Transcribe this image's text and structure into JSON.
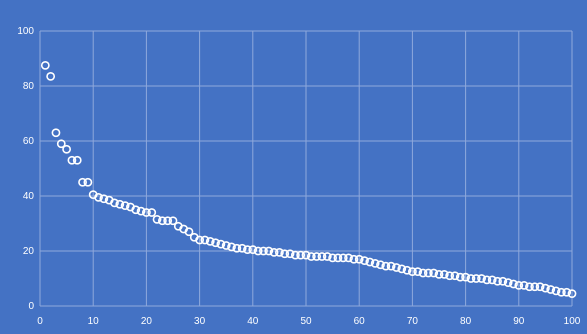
{
  "chart_data": {
    "type": "scatter",
    "title": "",
    "xlabel": "",
    "ylabel": "",
    "xlim": [
      0,
      100
    ],
    "ylim": [
      0,
      100
    ],
    "x_ticks": [
      "0",
      "10",
      "20",
      "30",
      "40",
      "50",
      "60",
      "70",
      "80",
      "90",
      "100"
    ],
    "y_ticks": [
      "0",
      "20",
      "40",
      "60",
      "80",
      "100"
    ],
    "grid": true,
    "legend": "none",
    "colors": {
      "background": "#4472c4",
      "grid": "#8fa9dc",
      "tick_text": "#ffffff",
      "marker_stroke": "#ffffff"
    },
    "series": [
      {
        "values": [
          [
            1,
            87.5
          ],
          [
            2,
            83.5
          ],
          [
            3,
            63
          ],
          [
            4,
            59
          ],
          [
            5,
            57
          ],
          [
            6,
            53
          ],
          [
            7,
            53
          ],
          [
            8,
            45
          ],
          [
            9,
            45
          ],
          [
            10,
            40.5
          ],
          [
            11,
            39.5
          ],
          [
            12,
            39
          ],
          [
            13,
            38.5
          ],
          [
            14,
            37.5
          ],
          [
            15,
            37
          ],
          [
            16,
            36.5
          ],
          [
            17,
            36
          ],
          [
            18,
            35
          ],
          [
            19,
            34.5
          ],
          [
            20,
            34
          ],
          [
            21,
            34
          ],
          [
            22,
            31.5
          ],
          [
            23,
            31
          ],
          [
            24,
            31
          ],
          [
            25,
            31
          ],
          [
            26,
            29
          ],
          [
            27,
            28
          ],
          [
            28,
            27
          ],
          [
            29,
            25
          ],
          [
            30,
            24
          ],
          [
            31,
            24
          ],
          [
            32,
            23.5
          ],
          [
            33,
            23
          ],
          [
            34,
            22.5
          ],
          [
            35,
            22
          ],
          [
            36,
            21.5
          ],
          [
            37,
            21
          ],
          [
            38,
            21
          ],
          [
            39,
            20.5
          ],
          [
            40,
            20.5
          ],
          [
            41,
            20
          ],
          [
            42,
            20
          ],
          [
            43,
            20
          ],
          [
            44,
            19.5
          ],
          [
            45,
            19.5
          ],
          [
            46,
            19
          ],
          [
            47,
            19
          ],
          [
            48,
            18.5
          ],
          [
            49,
            18.5
          ],
          [
            50,
            18.5
          ],
          [
            51,
            18
          ],
          [
            52,
            18
          ],
          [
            53,
            18
          ],
          [
            54,
            18
          ],
          [
            55,
            17.5
          ],
          [
            56,
            17.5
          ],
          [
            57,
            17.5
          ],
          [
            58,
            17.5
          ],
          [
            59,
            17
          ],
          [
            60,
            17
          ],
          [
            61,
            16.5
          ],
          [
            62,
            16
          ],
          [
            63,
            15.5
          ],
          [
            64,
            15
          ],
          [
            65,
            14.5
          ],
          [
            66,
            14.5
          ],
          [
            67,
            14
          ],
          [
            68,
            13.5
          ],
          [
            69,
            13
          ],
          [
            70,
            12.5
          ],
          [
            71,
            12.5
          ],
          [
            72,
            12
          ],
          [
            73,
            12
          ],
          [
            74,
            12
          ],
          [
            75,
            11.5
          ],
          [
            76,
            11.5
          ],
          [
            77,
            11
          ],
          [
            78,
            11
          ],
          [
            79,
            10.5
          ],
          [
            80,
            10.5
          ],
          [
            81,
            10
          ],
          [
            82,
            10
          ],
          [
            83,
            10
          ],
          [
            84,
            9.5
          ],
          [
            85,
            9.5
          ],
          [
            86,
            9
          ],
          [
            87,
            9
          ],
          [
            88,
            8.5
          ],
          [
            89,
            8
          ],
          [
            90,
            7.5
          ],
          [
            91,
            7.5
          ],
          [
            92,
            7
          ],
          [
            93,
            7
          ],
          [
            94,
            7
          ],
          [
            95,
            6.5
          ],
          [
            96,
            6
          ],
          [
            97,
            5.5
          ],
          [
            98,
            5
          ],
          [
            99,
            5
          ],
          [
            100,
            4.5
          ]
        ]
      }
    ]
  }
}
